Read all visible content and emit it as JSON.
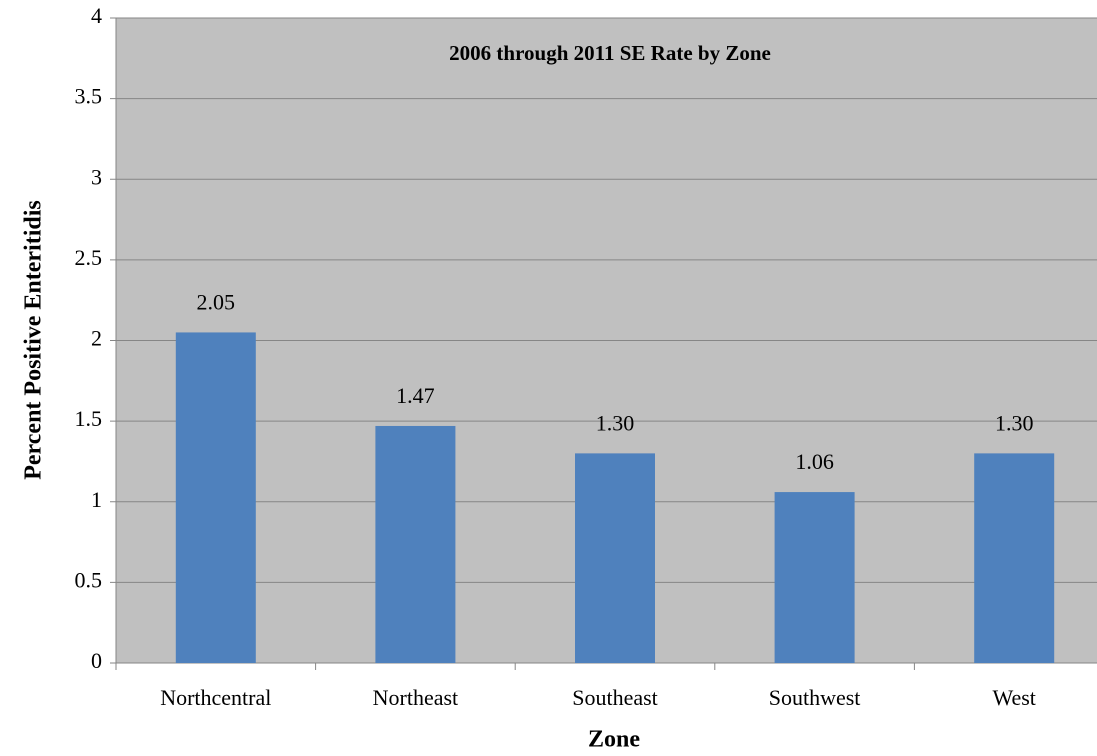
{
  "chart_data": {
    "type": "bar",
    "title": "2006 through 2011 SE Rate by Zone",
    "x_label": "Zone",
    "y_label": "Percent Positive Enteritidis",
    "categories": [
      "Northcentral",
      "Northeast",
      "Southeast",
      "Southwest",
      "West"
    ],
    "values": [
      2.05,
      1.47,
      1.3,
      1.06,
      1.3
    ],
    "value_labels": [
      "2.05",
      "1.47",
      "1.30",
      "1.06",
      "1.30"
    ],
    "color": "#4f81bd",
    "ylim": [
      0,
      4
    ],
    "yticks": [
      0,
      0.5,
      1,
      1.5,
      2,
      2.5,
      3,
      3.5,
      4
    ],
    "grid": true
  }
}
